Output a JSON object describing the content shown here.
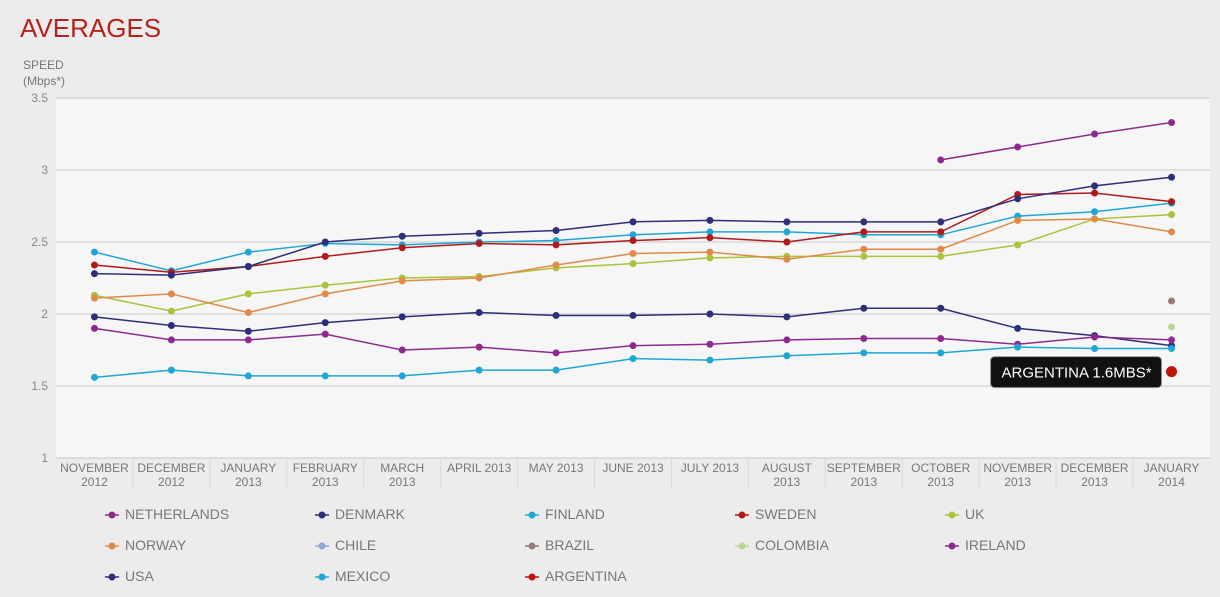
{
  "chart_data": {
    "type": "line",
    "title": "AVERAGES",
    "y_label": "SPEED (Mbps*)",
    "categories": [
      "NOVEMBER 2012",
      "DECEMBER 2012",
      "JANUARY 2013",
      "FEBRUARY 2013",
      "MARCH 2013",
      "APRIL 2013",
      "MAY 2013",
      "JUNE 2013",
      "JULY 2013",
      "AUGUST 2013",
      "SEPTEMBER 2013",
      "OCTOBER 2013",
      "NOVEMBER 2013",
      "DECEMBER 2013",
      "JANUARY 2014"
    ],
    "ylim": [
      1,
      3.5
    ],
    "yticks": [
      1,
      1.5,
      2,
      2.5,
      3,
      3.5
    ],
    "grid": true,
    "series": [
      {
        "name": "NETHERLANDS",
        "color": "#8e2a8e",
        "values": [
          null,
          null,
          null,
          null,
          null,
          null,
          null,
          null,
          null,
          null,
          null,
          3.07,
          3.16,
          3.25,
          3.33
        ]
      },
      {
        "name": "DENMARK",
        "color": "#2e2e7a",
        "values": [
          1.98,
          1.92,
          1.88,
          1.94,
          1.98,
          2.01,
          1.99,
          1.99,
          2.0,
          1.98,
          2.04,
          2.04,
          1.9,
          1.85,
          1.78
        ]
      },
      {
        "name": "FINLAND",
        "color": "#1ea7d6",
        "values": [
          2.43,
          2.3,
          2.43,
          2.49,
          2.48,
          2.5,
          2.51,
          2.55,
          2.57,
          2.57,
          2.55,
          2.55,
          2.68,
          2.71,
          2.77
        ]
      },
      {
        "name": "SWEDEN",
        "color": "#b01a1a",
        "values": [
          2.34,
          2.29,
          2.33,
          2.4,
          2.46,
          2.49,
          2.48,
          2.51,
          2.53,
          2.5,
          2.57,
          2.57,
          2.83,
          2.84,
          2.78
        ]
      },
      {
        "name": "UK",
        "color": "#a8c43a",
        "values": [
          2.13,
          2.02,
          2.14,
          2.2,
          2.25,
          2.26,
          2.32,
          2.35,
          2.39,
          2.4,
          2.4,
          2.4,
          2.48,
          2.66,
          2.69
        ]
      },
      {
        "name": "NORWAY",
        "color": "#e08a4a",
        "values": [
          2.11,
          2.14,
          2.01,
          2.14,
          2.23,
          2.25,
          2.34,
          2.42,
          2.43,
          2.38,
          2.45,
          2.45,
          2.65,
          2.66,
          2.57
        ]
      },
      {
        "name": "CHILE",
        "color": "#8aa8d0",
        "values": [
          null,
          null,
          null,
          null,
          null,
          null,
          null,
          null,
          null,
          null,
          null,
          null,
          null,
          null,
          null
        ]
      },
      {
        "name": "BRAZIL",
        "color": "#9a7a7a",
        "values": [
          null,
          null,
          null,
          null,
          null,
          null,
          null,
          null,
          null,
          null,
          null,
          null,
          null,
          null,
          2.09
        ]
      },
      {
        "name": "COLOMBIA",
        "color": "#b8d890",
        "values": [
          null,
          null,
          null,
          null,
          null,
          null,
          null,
          null,
          null,
          null,
          null,
          null,
          null,
          null,
          1.91
        ]
      },
      {
        "name": "IRELAND",
        "color": "#8e2a8e",
        "values": [
          1.9,
          1.82,
          1.82,
          1.86,
          1.75,
          1.77,
          1.73,
          1.78,
          1.79,
          1.82,
          1.83,
          1.83,
          1.79,
          1.84,
          1.82
        ]
      },
      {
        "name": "USA",
        "color": "#2e2e7a",
        "values": [
          2.28,
          2.27,
          2.33,
          2.5,
          2.54,
          2.56,
          2.58,
          2.64,
          2.65,
          2.64,
          2.64,
          2.64,
          2.8,
          2.89,
          2.95
        ]
      },
      {
        "name": "MEXICO",
        "color": "#1ea7d6",
        "values": [
          1.56,
          1.61,
          1.57,
          1.57,
          1.57,
          1.61,
          1.61,
          1.69,
          1.68,
          1.71,
          1.73,
          1.73,
          1.77,
          1.76,
          1.76
        ]
      },
      {
        "name": "ARGENTINA",
        "color": "#c0140c",
        "values": [
          null,
          null,
          null,
          null,
          null,
          null,
          null,
          null,
          null,
          null,
          null,
          null,
          null,
          null,
          1.6
        ]
      }
    ],
    "annotation": "ARGENTINA 1.6MBS*"
  }
}
